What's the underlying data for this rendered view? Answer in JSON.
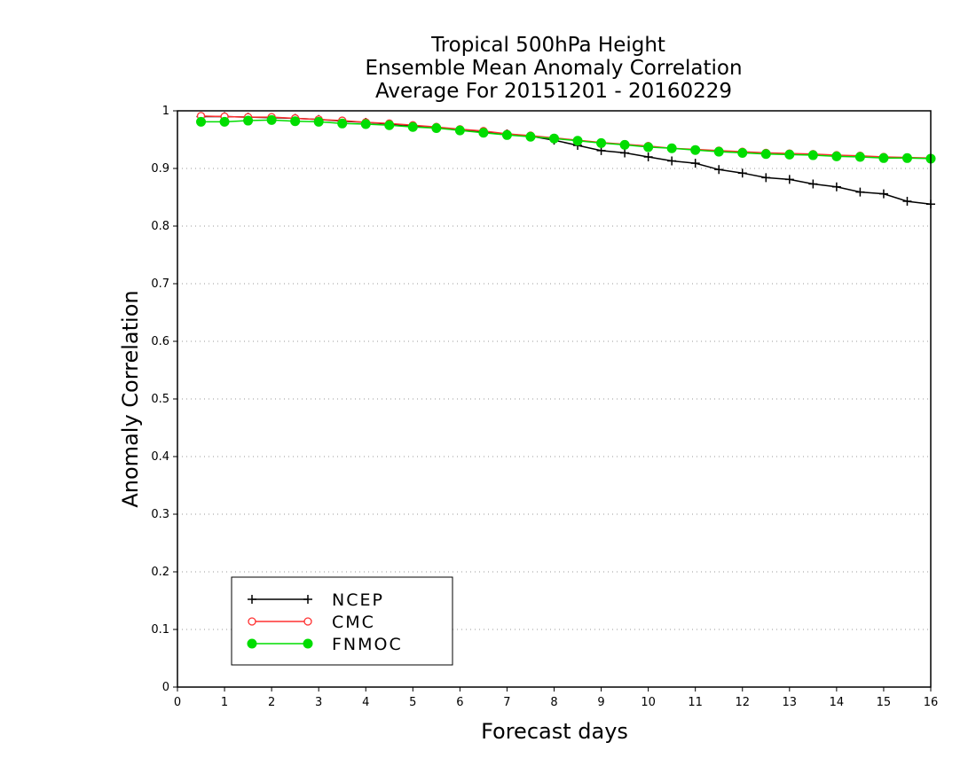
{
  "title_lines": [
    "Tropical 500hPa Height",
    "Ensemble Mean Anomaly Correlation",
    "Average For 20151201 - 20160229"
  ],
  "chart_data": {
    "type": "line",
    "title": "Tropical 500hPa Height\nEnsemble Mean Anomaly Correlation\nAverage For 20151201 - 20160229",
    "xlabel": "Forecast days",
    "ylabel": "Anomaly Correlation",
    "xlim": [
      0,
      16
    ],
    "ylim": [
      0,
      1
    ],
    "xticks": [
      "0",
      "1",
      "2",
      "3",
      "4",
      "5",
      "6",
      "7",
      "8",
      "9",
      "10",
      "11",
      "12",
      "13",
      "14",
      "15",
      "16"
    ],
    "yticks": [
      "0",
      "0.1",
      "0.2",
      "0.3",
      "0.4",
      "0.5",
      "0.6",
      "0.7",
      "0.8",
      "0.9",
      "1"
    ],
    "grid": "horizontal dotted",
    "legend_position": "bottom-left",
    "x": [
      0.5,
      1,
      1.5,
      2,
      2.5,
      3,
      3.5,
      4,
      4.5,
      5,
      5.5,
      6,
      6.5,
      7,
      7.5,
      8,
      8.5,
      9,
      9.5,
      10,
      10.5,
      11,
      11.5,
      12,
      12.5,
      13,
      13.5,
      14,
      14.5,
      15,
      15.5,
      16
    ],
    "series": [
      {
        "name": "NCEP",
        "color": "#000000",
        "marker": "plus",
        "values": [
          0.99,
          0.99,
          0.989,
          0.988,
          0.987,
          0.985,
          0.982,
          0.98,
          0.977,
          0.974,
          0.971,
          0.967,
          0.963,
          0.96,
          0.956,
          0.949,
          0.94,
          0.931,
          0.927,
          0.92,
          0.913,
          0.909,
          0.898,
          0.892,
          0.884,
          0.881,
          0.873,
          0.868,
          0.859,
          0.856,
          0.843,
          0.838
        ]
      },
      {
        "name": "CMC",
        "color": "#ff3030",
        "marker": "open-circle",
        "values": [
          0.991,
          0.99,
          0.989,
          0.989,
          0.987,
          0.985,
          0.983,
          0.98,
          0.978,
          0.975,
          0.972,
          0.968,
          0.965,
          0.96,
          0.957,
          0.953,
          0.949,
          0.945,
          0.942,
          0.939,
          0.935,
          0.933,
          0.931,
          0.929,
          0.927,
          0.926,
          0.925,
          0.923,
          0.922,
          0.92,
          0.919,
          0.918
        ]
      },
      {
        "name": "FNMOC",
        "color": "#00dd00",
        "marker": "filled-circle",
        "values": [
          0.981,
          0.981,
          0.983,
          0.984,
          0.982,
          0.981,
          0.978,
          0.977,
          0.975,
          0.972,
          0.97,
          0.966,
          0.962,
          0.958,
          0.955,
          0.952,
          0.948,
          0.944,
          0.941,
          0.937,
          0.935,
          0.932,
          0.929,
          0.927,
          0.925,
          0.924,
          0.923,
          0.921,
          0.92,
          0.918,
          0.918,
          0.917
        ]
      }
    ]
  }
}
